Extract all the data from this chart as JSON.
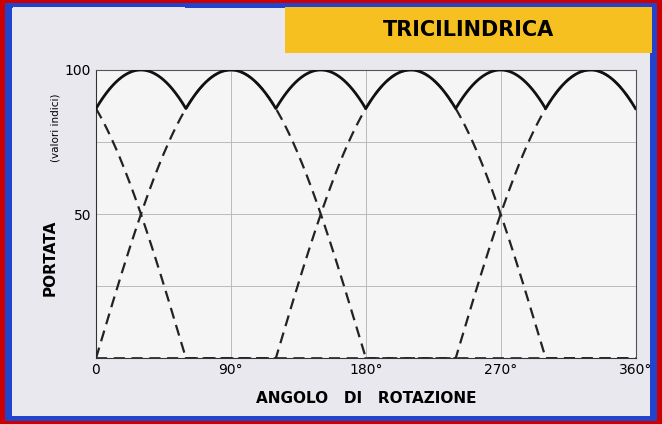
{
  "title": "TRICILINDRICA",
  "xlabel": "ANGOLO   DI   ROTAZIONE",
  "ylabel": "PORTATA",
  "ylabel2": "(valori indici)",
  "ylim": [
    0,
    100
  ],
  "xlim": [
    0,
    360
  ],
  "xticks": [
    0,
    90,
    180,
    270,
    360
  ],
  "xtick_labels": [
    "0",
    "90°",
    "180°",
    "270°",
    "360°"
  ],
  "yticks": [
    50,
    100
  ],
  "grid_yticks": [
    0,
    25,
    50,
    75,
    100
  ],
  "grid_xticks": [
    0,
    90,
    180,
    270,
    360
  ],
  "grid_color": "#bbbbbb",
  "bg_outer": "#e8e8ee",
  "bg_red_border": "#cc0000",
  "bg_blue_border": "#2244cc",
  "bg_plot": "#f5f5f5",
  "title_bg": "#f5c020",
  "title_color": "#000000",
  "line_color": "#111111",
  "dashes_color": "#222222",
  "solid_linewidth": 2.0,
  "dashed_linewidth": 1.6,
  "phase_shift_deg": 120,
  "fig_width": 6.62,
  "fig_height": 4.24
}
